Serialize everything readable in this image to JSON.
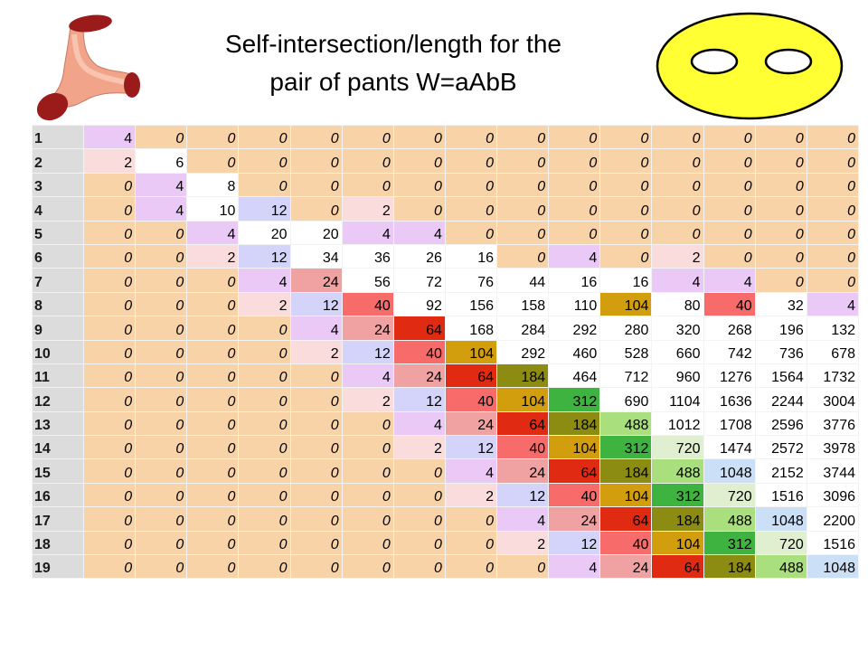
{
  "title": {
    "line1": "Self-intersection/length for the",
    "line2": "pair of pants W=aAbB"
  },
  "illustrations": {
    "left": "pair-of-pants-surface",
    "right": "genus-two-surface-with-two-holes"
  },
  "colors": {
    "zero_bg": "#f9d3a8",
    "row_header_bg": "#dcdcdc",
    "white": "#ffffff",
    "light_pink": "#fbdcdc",
    "lavender": "#ebc9f7",
    "light_blue": "#d4d4fb",
    "pink": "#f0a1a1",
    "salmon": "#f76b6b",
    "red": "#e12a12",
    "gold": "#d39e0d",
    "olive": "#8c8c12",
    "green": "#3fb33f",
    "light_green": "#a9df7d",
    "pale_green": "#dfefcf",
    "pale_blue": "#cbe0f7",
    "yellow": "#ffff33",
    "pants_red": "#9b1a1a",
    "pants_skin": "#f2a48a"
  },
  "table": {
    "row_labels": [
      "1",
      "2",
      "3",
      "4",
      "5",
      "6",
      "7",
      "8",
      "9",
      "10",
      "11",
      "12",
      "13",
      "14",
      "15",
      "16",
      "17",
      "18",
      "19"
    ],
    "rows": [
      [
        "4",
        "0",
        "0",
        "0",
        "0",
        "0",
        "0",
        "0",
        "0",
        "0",
        "0",
        "0",
        "0",
        "0",
        "0"
      ],
      [
        "2",
        "6",
        "0",
        "0",
        "0",
        "0",
        "0",
        "0",
        "0",
        "0",
        "0",
        "0",
        "0",
        "0",
        "0"
      ],
      [
        "0",
        "4",
        "8",
        "0",
        "0",
        "0",
        "0",
        "0",
        "0",
        "0",
        "0",
        "0",
        "0",
        "0",
        "0"
      ],
      [
        "0",
        "4",
        "10",
        "12",
        "0",
        "2",
        "0",
        "0",
        "0",
        "0",
        "0",
        "0",
        "0",
        "0",
        "0"
      ],
      [
        "0",
        "0",
        "4",
        "20",
        "20",
        "4",
        "4",
        "0",
        "0",
        "0",
        "0",
        "0",
        "0",
        "0",
        "0"
      ],
      [
        "0",
        "0",
        "2",
        "12",
        "34",
        "36",
        "26",
        "16",
        "0",
        "4",
        "0",
        "2",
        "0",
        "0",
        "0"
      ],
      [
        "0",
        "0",
        "0",
        "4",
        "24",
        "56",
        "72",
        "76",
        "44",
        "16",
        "16",
        "4",
        "4",
        "0",
        "0"
      ],
      [
        "0",
        "0",
        "0",
        "2",
        "12",
        "40",
        "92",
        "156",
        "158",
        "110",
        "104",
        "80",
        "40",
        "32",
        "4"
      ],
      [
        "0",
        "0",
        "0",
        "0",
        "4",
        "24",
        "64",
        "168",
        "284",
        "292",
        "280",
        "320",
        "268",
        "196",
        "132"
      ],
      [
        "0",
        "0",
        "0",
        "0",
        "2",
        "12",
        "40",
        "104",
        "292",
        "460",
        "528",
        "660",
        "742",
        "736",
        "678"
      ],
      [
        "0",
        "0",
        "0",
        "0",
        "0",
        "4",
        "24",
        "64",
        "184",
        "464",
        "712",
        "960",
        "1276",
        "1564",
        "1732"
      ],
      [
        "0",
        "0",
        "0",
        "0",
        "0",
        "2",
        "12",
        "40",
        "104",
        "312",
        "690",
        "1104",
        "1636",
        "2244",
        "3004"
      ],
      [
        "0",
        "0",
        "0",
        "0",
        "0",
        "0",
        "4",
        "24",
        "64",
        "184",
        "488",
        "1012",
        "1708",
        "2596",
        "3776"
      ],
      [
        "0",
        "0",
        "0",
        "0",
        "0",
        "0",
        "2",
        "12",
        "40",
        "104",
        "312",
        "720",
        "1474",
        "2572",
        "3978"
      ],
      [
        "0",
        "0",
        "0",
        "0",
        "0",
        "0",
        "0",
        "4",
        "24",
        "64",
        "184",
        "488",
        "1048",
        "2152",
        "3744"
      ],
      [
        "0",
        "0",
        "0",
        "0",
        "0",
        "0",
        "0",
        "2",
        "12",
        "40",
        "104",
        "312",
        "720",
        "1516",
        "3096"
      ],
      [
        "0",
        "0",
        "0",
        "0",
        "0",
        "0",
        "0",
        "0",
        "4",
        "24",
        "64",
        "184",
        "488",
        "1048",
        "2200"
      ],
      [
        "0",
        "0",
        "0",
        "0",
        "0",
        "0",
        "0",
        "0",
        "2",
        "12",
        "40",
        "104",
        "312",
        "720",
        "1516"
      ],
      [
        "0",
        "0",
        "0",
        "0",
        "0",
        "0",
        "0",
        "0",
        "0",
        "4",
        "24",
        "64",
        "184",
        "488",
        "1048"
      ]
    ],
    "value_fill": {
      "2": "#fbdcdc",
      "4": "#ebc9f7",
      "12": "#d4d4fb",
      "24": "#f0a1a1",
      "40": "#f76b6b",
      "64": "#e12a12",
      "104": "#d39e0d",
      "184": "#8c8c12",
      "312": "#3fb33f",
      "488": "#a9df7d",
      "720": "#dfefcf",
      "1048": "#cbe0f7"
    }
  }
}
